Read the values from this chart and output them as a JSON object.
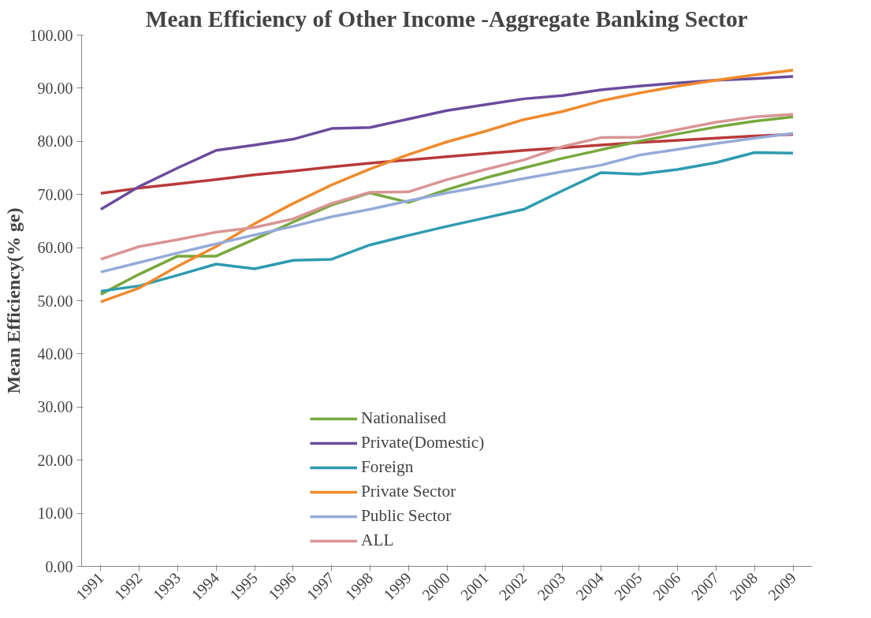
{
  "chart_data": {
    "type": "line",
    "title": "Mean Efficiency of Other Income -Aggregate Banking Sector",
    "ylabel": "Mean Efficiency(% ge)",
    "categories": [
      "1991",
      "1992",
      "1993",
      "1994",
      "1995",
      "1996",
      "1997",
      "1998",
      "1999",
      "2000",
      "2001",
      "2002",
      "2003",
      "2004",
      "2005",
      "2006",
      "2007",
      "2008",
      "2009"
    ],
    "ylim": [
      0,
      100
    ],
    "yticks": [
      {
        "value": 0,
        "label": "0.00"
      },
      {
        "value": 10,
        "label": "10.00"
      },
      {
        "value": 20,
        "label": "20.00"
      },
      {
        "value": 30,
        "label": "30.00"
      },
      {
        "value": 40,
        "label": "40.00"
      },
      {
        "value": 50,
        "label": "50.00"
      },
      {
        "value": 60,
        "label": "60.00"
      },
      {
        "value": 70,
        "label": "70.00"
      },
      {
        "value": 80,
        "label": "80.00"
      },
      {
        "value": 90,
        "label": "90.00"
      },
      {
        "value": 100,
        "label": "100.00"
      }
    ],
    "grid": false,
    "legend": "bottom",
    "marker": "none",
    "line_style": "solid",
    "series": [
      {
        "color": "#b83a3a",
        "values": [
          70.2,
          71.2,
          72.0,
          72.8,
          73.7,
          74.4,
          75.2,
          75.9,
          76.5,
          77.1,
          77.7,
          78.3,
          78.8,
          79.3,
          79.8,
          80.2,
          80.6,
          81.0,
          81.3
        ]
      },
      {
        "name": "Nationalised",
        "color": "#77a83c",
        "values": [
          51.2,
          55.0,
          58.4,
          58.4,
          61.6,
          64.8,
          68.0,
          70.3,
          68.5,
          70.9,
          73.1,
          75.0,
          76.8,
          78.4,
          80.0,
          81.4,
          82.7,
          83.8,
          84.6
        ]
      },
      {
        "name": "Private(Domestic)",
        "color": "#6a4c9c",
        "values": [
          67.2,
          71.5,
          75.0,
          78.3,
          79.3,
          80.4,
          82.4,
          82.6,
          84.2,
          85.8,
          86.9,
          88.0,
          88.6,
          89.7,
          90.4,
          91.0,
          91.5,
          91.8,
          92.2
        ]
      },
      {
        "name": "Foreign",
        "color": "#2e9bb0",
        "values": [
          51.8,
          52.8,
          54.8,
          56.9,
          56.0,
          57.6,
          57.8,
          60.5,
          62.3,
          64.0,
          65.6,
          67.2,
          70.7,
          74.1,
          73.8,
          74.7,
          76.0,
          77.9,
          77.8
        ]
      },
      {
        "name": "Private Sector",
        "color": "#f08a2c",
        "values": [
          49.8,
          52.4,
          56.5,
          60.2,
          64.5,
          68.3,
          71.8,
          74.8,
          77.5,
          79.9,
          81.9,
          84.1,
          85.6,
          87.6,
          89.1,
          90.4,
          91.5,
          92.5,
          93.4
        ]
      },
      {
        "name": "Public Sector",
        "color": "#95abd8",
        "values": [
          55.4,
          57.2,
          59.0,
          60.7,
          62.4,
          64.0,
          65.8,
          67.2,
          68.8,
          70.3,
          71.6,
          73.0,
          74.3,
          75.5,
          77.4,
          78.5,
          79.6,
          80.6,
          81.5
        ]
      },
      {
        "name": "ALL",
        "color": "#d99595",
        "values": [
          57.8,
          60.2,
          61.5,
          62.9,
          63.8,
          65.4,
          68.3,
          70.4,
          70.5,
          72.8,
          74.7,
          76.5,
          79.0,
          80.7,
          80.8,
          82.2,
          83.6,
          84.6,
          85.1
        ]
      }
    ]
  }
}
